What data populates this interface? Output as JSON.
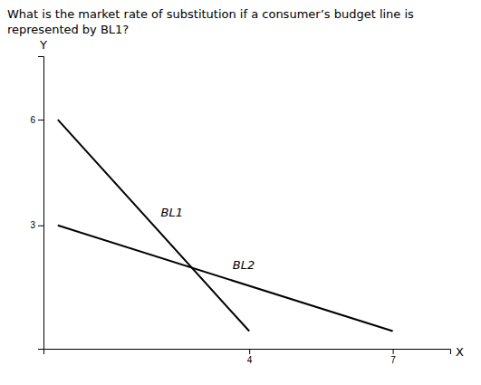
{
  "chart_data": {
    "type": "line",
    "title": "What is the market rate of substitution if a consumer’s budget line is represented by BL1?",
    "x_label": "X",
    "y_label": "Y",
    "series": [
      {
        "name": "BL1",
        "color": "#000000",
        "x": [
          0,
          4
        ],
        "values": [
          6,
          0
        ]
      },
      {
        "name": "BL2",
        "color": "#000000",
        "x": [
          0,
          7
        ],
        "values": [
          3,
          0
        ]
      }
    ],
    "xlim": [
      -0.3,
      8.2
    ],
    "ylim": [
      -0.5,
      7.8
    ],
    "xticks": [
      4,
      7
    ],
    "yticks": [
      3,
      6
    ],
    "grid": false
  }
}
